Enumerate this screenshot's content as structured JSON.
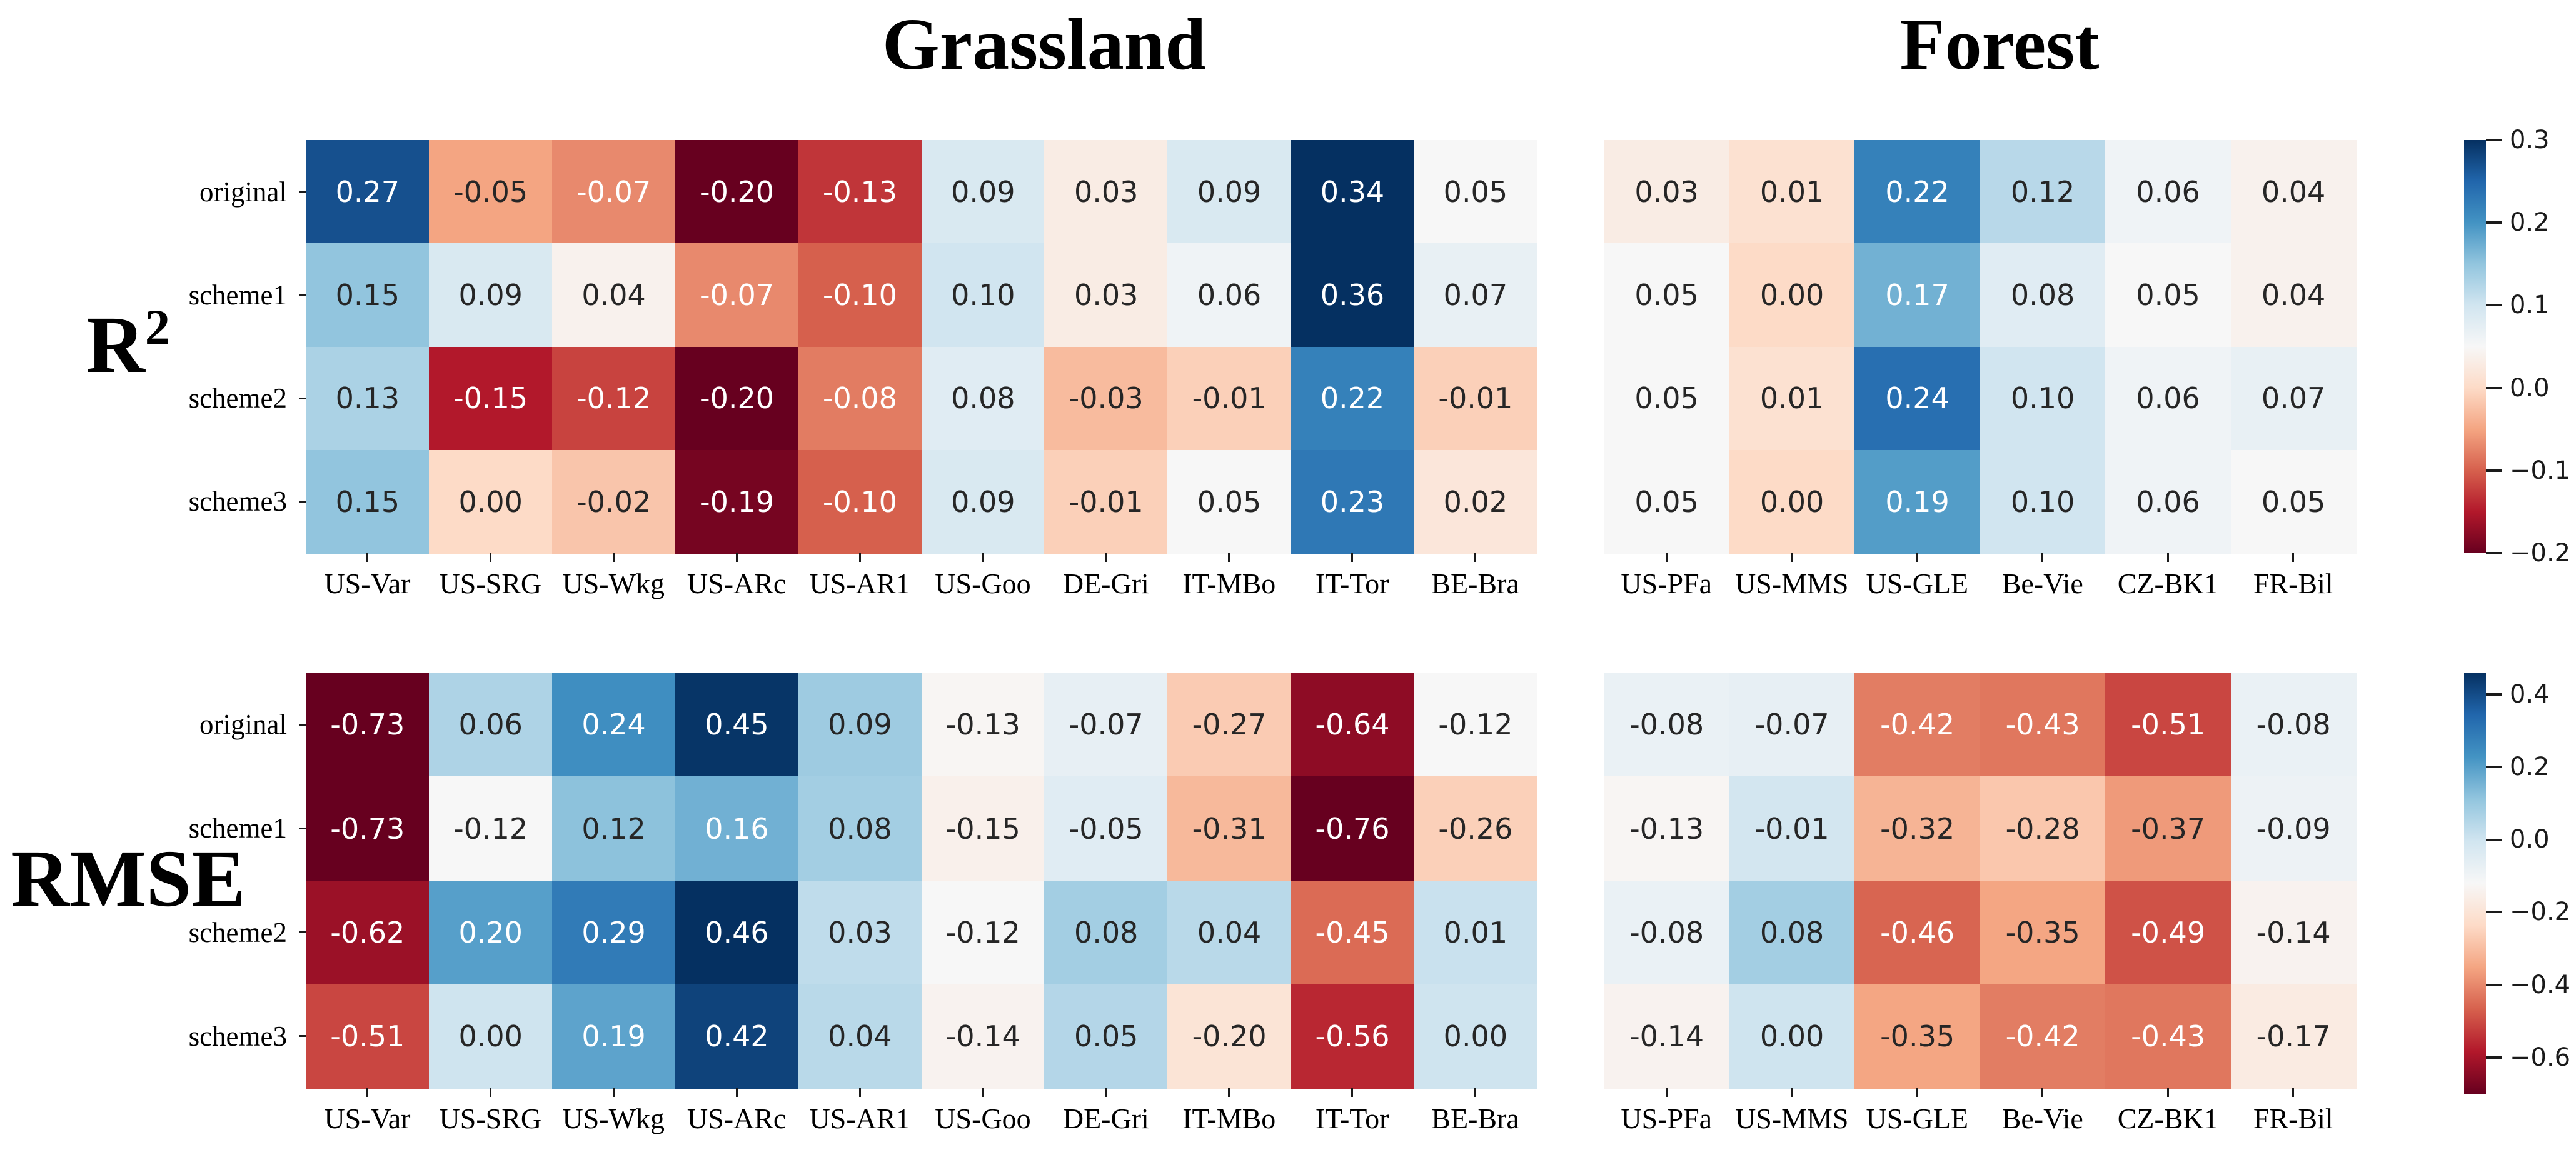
{
  "headers": {
    "group_titles": [
      "Grassland",
      "Forest"
    ]
  },
  "metric_labels": [
    {
      "base": "R",
      "sup": "2"
    },
    {
      "base": "RMSE"
    }
  ],
  "colormap_rdbu": [
    "#67001f",
    "#b2182b",
    "#d6604d",
    "#f4a582",
    "#fddbc7",
    "#f7f7f7",
    "#d1e5f0",
    "#92c5de",
    "#4393c3",
    "#2166ac",
    "#053061"
  ],
  "chart_data": [
    {
      "type": "heatmap",
      "metric": "R2",
      "row_labels": [
        "original",
        "scheme1",
        "scheme2",
        "scheme3"
      ],
      "scale": {
        "vmin": -0.2,
        "vmax": 0.3,
        "colormap": "RdBu",
        "legend_position": "right"
      },
      "colorbar_ticks": [
        {
          "value": 0.3,
          "label": "0.3"
        },
        {
          "value": 0.2,
          "label": "0.2"
        },
        {
          "value": 0.1,
          "label": "0.1"
        },
        {
          "value": 0.0,
          "label": "0.0"
        },
        {
          "value": -0.1,
          "label": "−0.1"
        },
        {
          "value": -0.2,
          "label": "−0.2"
        }
      ],
      "panels": [
        {
          "group": "Grassland",
          "columns": [
            "US-Var",
            "US-SRG",
            "US-Wkg",
            "US-ARc",
            "US-AR1",
            "US-Goo",
            "DE-Gri",
            "IT-MBo",
            "IT-Tor",
            "BE-Bra"
          ],
          "values": [
            [
              0.27,
              -0.05,
              -0.07,
              -0.2,
              -0.13,
              0.09,
              0.03,
              0.09,
              0.34,
              0.05
            ],
            [
              0.15,
              0.09,
              0.04,
              -0.07,
              -0.1,
              0.1,
              0.03,
              0.06,
              0.36,
              0.07
            ],
            [
              0.13,
              -0.15,
              -0.12,
              -0.2,
              -0.08,
              0.08,
              -0.03,
              -0.01,
              0.22,
              -0.01
            ],
            [
              0.15,
              0.0,
              -0.02,
              -0.19,
              -0.1,
              0.09,
              -0.01,
              0.05,
              0.23,
              0.02
            ]
          ]
        },
        {
          "group": "Forest",
          "columns": [
            "US-PFa",
            "US-MMS",
            "US-GLE",
            "Be-Vie",
            "CZ-BK1",
            "FR-Bil"
          ],
          "values": [
            [
              0.03,
              0.01,
              0.22,
              0.12,
              0.06,
              0.04
            ],
            [
              0.05,
              0.0,
              0.17,
              0.08,
              0.05,
              0.04
            ],
            [
              0.05,
              0.01,
              0.24,
              0.1,
              0.06,
              0.07
            ],
            [
              0.05,
              0.0,
              0.19,
              0.1,
              0.06,
              0.05
            ]
          ]
        }
      ]
    },
    {
      "type": "heatmap",
      "metric": "RMSE",
      "row_labels": [
        "original",
        "scheme1",
        "scheme2",
        "scheme3"
      ],
      "scale": {
        "vmin": -0.7,
        "vmax": 0.46,
        "colormap": "RdBu",
        "legend_position": "right"
      },
      "colorbar_ticks": [
        {
          "value": 0.4,
          "label": "0.4"
        },
        {
          "value": 0.2,
          "label": "0.2"
        },
        {
          "value": 0.0,
          "label": "0.0"
        },
        {
          "value": -0.2,
          "label": "−0.2"
        },
        {
          "value": -0.4,
          "label": "−0.4"
        },
        {
          "value": -0.6,
          "label": "−0.6"
        }
      ],
      "panels": [
        {
          "group": "Grassland",
          "columns": [
            "US-Var",
            "US-SRG",
            "US-Wkg",
            "US-ARc",
            "US-AR1",
            "US-Goo",
            "DE-Gri",
            "IT-MBo",
            "IT-Tor",
            "BE-Bra"
          ],
          "values": [
            [
              -0.73,
              0.06,
              0.24,
              0.45,
              0.09,
              -0.13,
              -0.07,
              -0.27,
              -0.64,
              -0.12
            ],
            [
              -0.73,
              -0.12,
              0.12,
              0.16,
              0.08,
              -0.15,
              -0.05,
              -0.31,
              -0.76,
              -0.26
            ],
            [
              -0.62,
              0.2,
              0.29,
              0.46,
              0.03,
              -0.12,
              0.08,
              0.04,
              -0.45,
              0.01
            ],
            [
              -0.51,
              0.0,
              0.19,
              0.42,
              0.04,
              -0.14,
              0.05,
              -0.2,
              -0.56,
              0.0
            ]
          ]
        },
        {
          "group": "Forest",
          "columns": [
            "US-PFa",
            "US-MMS",
            "US-GLE",
            "Be-Vie",
            "CZ-BK1",
            "FR-Bil"
          ],
          "values": [
            [
              -0.08,
              -0.07,
              -0.42,
              -0.43,
              -0.51,
              -0.08
            ],
            [
              -0.13,
              -0.01,
              -0.32,
              -0.28,
              -0.37,
              -0.09
            ],
            [
              -0.08,
              0.08,
              -0.46,
              -0.35,
              -0.49,
              -0.14
            ],
            [
              -0.14,
              0.0,
              -0.35,
              -0.42,
              -0.43,
              -0.17
            ]
          ]
        }
      ]
    }
  ]
}
